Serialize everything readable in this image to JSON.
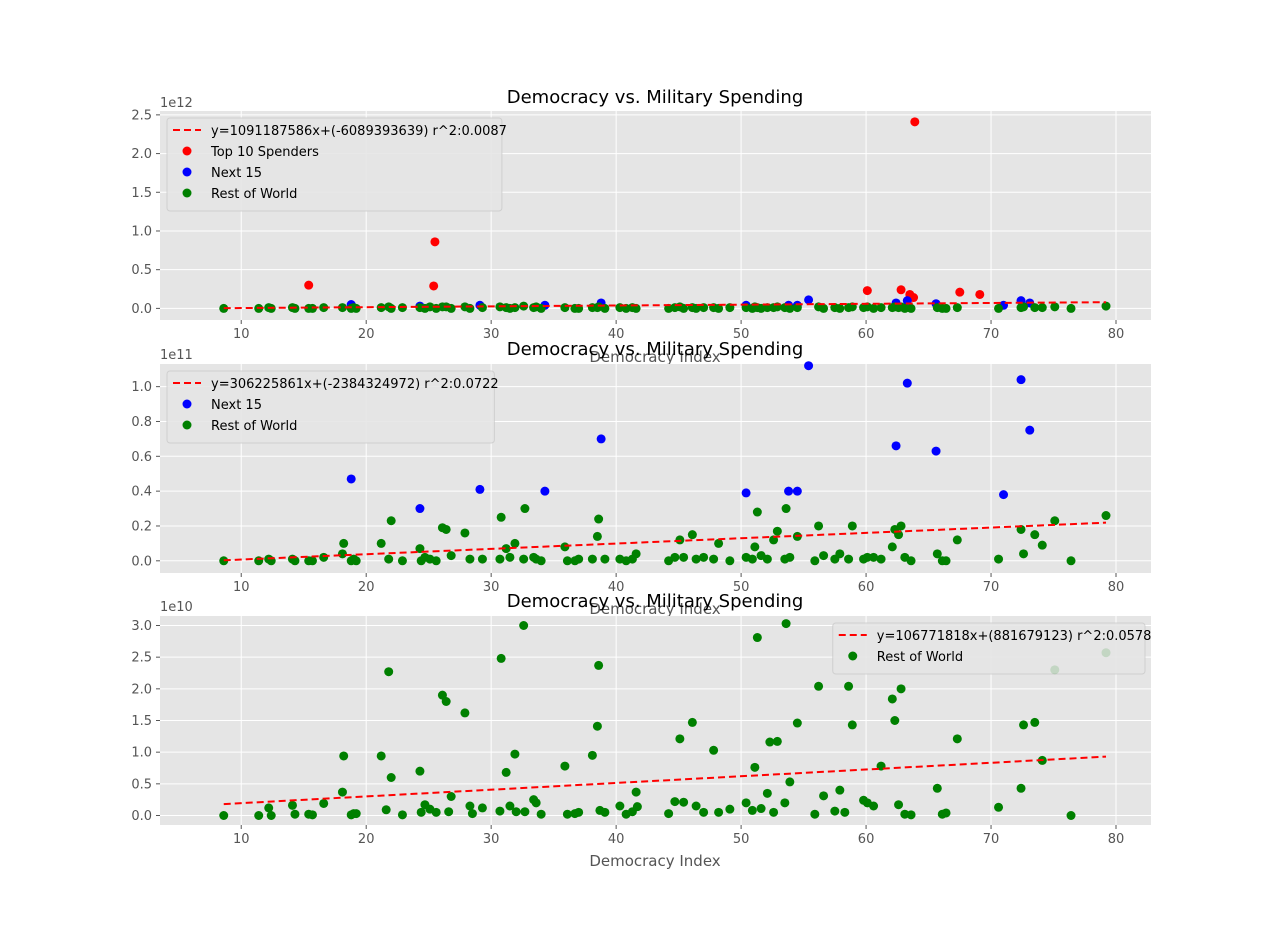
{
  "colors": {
    "panel_bg": "#e5e5e5",
    "grid": "#ffffff",
    "top10": "#ff0000",
    "next15": "#0000ff",
    "rest": "#008000",
    "fit": "#ff0000"
  },
  "chart_data": [
    {
      "type": "scatter",
      "title": "Democracy vs. Military Spending",
      "xlabel": "Democracy Index",
      "ylabel": "",
      "y_offset_label": "1e12",
      "xlim": [
        3.5,
        82.8
      ],
      "ylim": [
        -0.15,
        2.55
      ],
      "x_ticks": [
        10,
        20,
        30,
        40,
        50,
        60,
        70,
        80
      ],
      "x_tick_labels": [
        "10",
        "20",
        "30",
        "40",
        "50",
        "60",
        "70",
        "80"
      ],
      "y_ticks": [
        0.0,
        0.5,
        1.0,
        1.5,
        2.0,
        2.5
      ],
      "y_tick_labels": [
        "0.0",
        "0.5",
        "1.0",
        "1.5",
        "2.0",
        "2.5"
      ],
      "legend_position": "upper-left",
      "grid": true,
      "fit": {
        "label": "y=1091187586x+(-6089393639) r^2:0.0087",
        "x": [
          8.6,
          79.2
        ],
        "y": [
          0.003,
          0.08
        ]
      },
      "series": [
        {
          "name": "Top 10 Spenders",
          "color": "top10",
          "x": [
            15.4,
            25.4,
            25.5,
            60.1,
            62.8,
            63.5,
            63.8,
            63.9,
            67.5,
            69.1
          ],
          "y": [
            0.3,
            0.29,
            0.86,
            0.23,
            0.24,
            0.18,
            0.14,
            2.41,
            0.21,
            0.18
          ]
        },
        {
          "name": "Next 15",
          "color": "next15",
          "x": [
            18.8,
            24.3,
            29.1,
            34.3,
            38.8,
            50.4,
            53.8,
            54.5,
            55.4,
            62.4,
            63.3,
            65.6,
            71.0,
            72.4,
            73.1
          ],
          "y": [
            0.05,
            0.03,
            0.04,
            0.04,
            0.07,
            0.04,
            0.04,
            0.04,
            0.11,
            0.07,
            0.1,
            0.06,
            0.04,
            0.1,
            0.07
          ]
        },
        {
          "name": "Rest of World",
          "color": "rest",
          "x": [
            8.6,
            11.4,
            12.2,
            12.4,
            14.1,
            14.3,
            15.4,
            15.7,
            16.6,
            18.1,
            18.8,
            19.0,
            19.2,
            21.2,
            21.8,
            22.0,
            22.9,
            24.3,
            24.7,
            25.1,
            25.6,
            26.1,
            26.4,
            26.8,
            27.9,
            28.3,
            29.3,
            30.7,
            31.2,
            31.5,
            31.9,
            32.6,
            33.4,
            33.6,
            34.0,
            35.9,
            36.7,
            37.0,
            38.1,
            38.5,
            38.6,
            39.1,
            40.3,
            40.8,
            41.3,
            41.6,
            44.2,
            44.7,
            45.1,
            45.4,
            46.1,
            46.4,
            47.0,
            47.8,
            48.2,
            49.1,
            50.4,
            50.9,
            51.1,
            51.3,
            51.6,
            52.1,
            52.6,
            52.9,
            53.5,
            53.9,
            54.5,
            56.2,
            56.6,
            57.5,
            57.9,
            58.6,
            58.9,
            59.8,
            60.1,
            60.6,
            61.2,
            62.1,
            62.3,
            62.6,
            62.8,
            63.1,
            63.6,
            65.7,
            66.1,
            66.4,
            67.3,
            70.6,
            72.4,
            72.6,
            73.5,
            74.1,
            75.1,
            76.4,
            79.2
          ],
          "y": [
            0.0,
            0.0,
            0.01,
            0.0,
            0.01,
            0.0,
            0.0,
            0.0,
            0.01,
            0.01,
            0.0,
            0.01,
            0.0,
            0.01,
            0.02,
            0.0,
            0.01,
            0.01,
            0.0,
            0.02,
            0.0,
            0.02,
            0.02,
            0.0,
            0.02,
            0.0,
            0.01,
            0.02,
            0.01,
            0.0,
            0.01,
            0.03,
            0.01,
            0.02,
            0.0,
            0.01,
            0.0,
            0.0,
            0.01,
            0.01,
            0.02,
            0.0,
            0.01,
            0.0,
            0.01,
            0.0,
            0.0,
            0.01,
            0.02,
            0.0,
            0.01,
            0.0,
            0.01,
            0.01,
            0.0,
            0.01,
            0.01,
            0.0,
            0.02,
            0.01,
            0.0,
            0.01,
            0.01,
            0.02,
            0.01,
            0.0,
            0.01,
            0.02,
            0.0,
            0.01,
            0.0,
            0.01,
            0.02,
            0.01,
            0.02,
            0.0,
            0.01,
            0.01,
            0.02,
            0.01,
            0.02,
            0.0,
            0.0,
            0.01,
            0.0,
            0.0,
            0.01,
            0.0,
            0.01,
            0.02,
            0.01,
            0.01,
            0.02,
            0.0,
            0.03
          ]
        }
      ]
    },
    {
      "type": "scatter",
      "title": "Democracy vs. Military Spending",
      "xlabel": "Democracy Index",
      "ylabel": "",
      "y_offset_label": "1e11",
      "xlim": [
        3.5,
        82.8
      ],
      "ylim": [
        -0.07,
        1.13
      ],
      "x_ticks": [
        10,
        20,
        30,
        40,
        50,
        60,
        70,
        80
      ],
      "x_tick_labels": [
        "10",
        "20",
        "30",
        "40",
        "50",
        "60",
        "70",
        "80"
      ],
      "y_ticks": [
        0.0,
        0.2,
        0.4,
        0.6,
        0.8,
        1.0
      ],
      "y_tick_labels": [
        "0.0",
        "0.2",
        "0.4",
        "0.6",
        "0.8",
        "1.0"
      ],
      "legend_position": "upper-left",
      "grid": true,
      "fit": {
        "label": "y=306225861x+(-2384324972) r^2:0.0722",
        "x": [
          8.6,
          79.2
        ],
        "y": [
          0.003,
          0.219
        ]
      },
      "series": [
        {
          "name": "Next 15",
          "color": "next15",
          "x": [
            18.8,
            24.3,
            29.1,
            34.3,
            38.8,
            50.4,
            53.8,
            54.5,
            55.4,
            62.4,
            63.3,
            65.6,
            71.0,
            72.4,
            73.1
          ],
          "y": [
            0.47,
            0.3,
            0.41,
            0.4,
            0.7,
            0.39,
            0.4,
            0.4,
            1.12,
            0.66,
            1.02,
            0.63,
            0.38,
            1.04,
            0.75
          ]
        },
        {
          "name": "Rest of World",
          "color": "rest",
          "x": [
            8.6,
            11.4,
            12.2,
            12.4,
            14.1,
            14.3,
            15.4,
            15.7,
            16.6,
            18.1,
            18.2,
            18.8,
            19.0,
            19.2,
            21.2,
            21.8,
            22.0,
            22.9,
            24.3,
            24.4,
            24.7,
            25.1,
            25.6,
            26.1,
            26.4,
            26.8,
            27.9,
            28.3,
            29.3,
            30.7,
            30.8,
            31.2,
            31.5,
            31.9,
            32.6,
            32.7,
            33.4,
            33.6,
            34.0,
            35.9,
            36.1,
            36.7,
            37.0,
            38.1,
            38.5,
            38.6,
            39.1,
            40.3,
            40.8,
            41.3,
            41.6,
            44.2,
            44.7,
            45.1,
            45.4,
            46.1,
            46.4,
            47.0,
            47.8,
            48.2,
            49.1,
            50.4,
            50.9,
            51.1,
            51.3,
            51.6,
            52.1,
            52.6,
            52.9,
            53.5,
            53.6,
            53.9,
            54.5,
            55.9,
            56.2,
            56.6,
            57.5,
            57.9,
            58.6,
            58.9,
            59.8,
            60.1,
            60.6,
            61.2,
            62.1,
            62.3,
            62.6,
            62.8,
            63.1,
            63.6,
            65.7,
            66.1,
            66.4,
            67.3,
            70.6,
            72.4,
            72.6,
            73.5,
            74.1,
            75.1,
            76.4,
            79.2
          ],
          "y": [
            0.0,
            0.0,
            0.01,
            0.0,
            0.01,
            0.0,
            0.0,
            0.0,
            0.02,
            0.04,
            0.1,
            0.0,
            0.01,
            0.0,
            0.1,
            0.01,
            0.23,
            0.0,
            0.07,
            0.0,
            0.02,
            0.01,
            0.0,
            0.19,
            0.18,
            0.03,
            0.16,
            0.01,
            0.01,
            0.01,
            0.25,
            0.07,
            0.02,
            0.1,
            0.01,
            0.3,
            0.02,
            0.01,
            0.0,
            0.08,
            0.0,
            0.0,
            0.01,
            0.01,
            0.14,
            0.24,
            0.01,
            0.01,
            0.0,
            0.01,
            0.04,
            0.0,
            0.02,
            0.12,
            0.02,
            0.15,
            0.01,
            0.02,
            0.01,
            0.1,
            0.0,
            0.02,
            0.01,
            0.08,
            0.28,
            0.03,
            0.01,
            0.12,
            0.17,
            0.01,
            0.3,
            0.02,
            0.14,
            0.0,
            0.2,
            0.03,
            0.01,
            0.04,
            0.01,
            0.2,
            0.01,
            0.02,
            0.02,
            0.01,
            0.08,
            0.18,
            0.15,
            0.2,
            0.02,
            0.0,
            0.04,
            0.0,
            0.0,
            0.12,
            0.01,
            0.18,
            0.04,
            0.15,
            0.09,
            0.23,
            0.0,
            0.26
          ]
        }
      ]
    },
    {
      "type": "scatter",
      "title": "Democracy vs. Military Spending",
      "xlabel": "Democracy Index",
      "ylabel": "",
      "y_offset_label": "1e10",
      "xlim": [
        3.5,
        82.8
      ],
      "ylim": [
        -0.15,
        3.15
      ],
      "x_ticks": [
        10,
        20,
        30,
        40,
        50,
        60,
        70,
        80
      ],
      "x_tick_labels": [
        "10",
        "20",
        "30",
        "40",
        "50",
        "60",
        "70",
        "80"
      ],
      "y_ticks": [
        0.0,
        0.5,
        1.0,
        1.5,
        2.0,
        2.5,
        3.0
      ],
      "y_tick_labels": [
        "0.0",
        "0.5",
        "1.0",
        "1.5",
        "2.0",
        "2.5",
        "3.0"
      ],
      "legend_position": "upper-right",
      "grid": true,
      "fit": {
        "label": "y=106771818x+(881679123) r^2:0.0578",
        "x": [
          8.6,
          79.2
        ],
        "y": [
          0.18,
          0.93
        ]
      },
      "series": [
        {
          "name": "Rest of World",
          "color": "rest",
          "x": [
            8.6,
            11.4,
            12.2,
            12.4,
            14.1,
            14.3,
            15.4,
            15.7,
            16.6,
            18.1,
            18.2,
            18.8,
            19.0,
            19.2,
            21.2,
            21.6,
            21.8,
            22.0,
            22.9,
            24.3,
            24.4,
            24.7,
            25.1,
            25.6,
            26.1,
            26.4,
            26.6,
            26.8,
            27.9,
            28.3,
            28.5,
            29.3,
            30.7,
            30.8,
            31.2,
            31.5,
            31.9,
            32.0,
            32.6,
            32.7,
            33.4,
            33.6,
            34.0,
            35.9,
            36.1,
            36.7,
            37.0,
            38.1,
            38.5,
            38.6,
            38.7,
            39.1,
            40.3,
            40.8,
            41.3,
            41.6,
            41.7,
            44.2,
            44.7,
            45.1,
            45.4,
            46.1,
            46.4,
            47.0,
            47.8,
            48.2,
            49.1,
            50.4,
            50.9,
            51.1,
            51.3,
            51.6,
            52.1,
            52.3,
            52.6,
            52.9,
            53.5,
            53.6,
            53.9,
            54.5,
            55.9,
            56.2,
            56.6,
            57.5,
            57.9,
            58.3,
            58.6,
            58.9,
            59.8,
            60.1,
            60.6,
            61.2,
            62.1,
            62.3,
            62.6,
            62.8,
            63.1,
            63.6,
            65.7,
            66.1,
            66.4,
            67.3,
            70.6,
            72.4,
            72.6,
            73.5,
            74.1,
            75.1,
            76.4,
            79.2
          ],
          "y": [
            0.0,
            0.0,
            0.12,
            0.0,
            0.16,
            0.02,
            0.02,
            0.01,
            0.19,
            0.37,
            0.94,
            0.01,
            0.03,
            0.03,
            0.94,
            0.09,
            2.27,
            0.6,
            0.01,
            0.7,
            0.05,
            0.17,
            0.1,
            0.05,
            1.9,
            1.8,
            0.06,
            0.3,
            1.62,
            0.15,
            0.03,
            0.12,
            0.07,
            2.48,
            0.68,
            0.15,
            0.97,
            0.06,
            3.0,
            0.06,
            0.25,
            0.2,
            0.02,
            0.78,
            0.02,
            0.03,
            0.05,
            0.95,
            1.41,
            2.37,
            0.08,
            0.05,
            0.15,
            0.02,
            0.06,
            0.37,
            0.14,
            0.03,
            0.22,
            1.21,
            0.21,
            1.47,
            0.15,
            0.05,
            1.03,
            0.05,
            0.1,
            0.2,
            0.08,
            0.76,
            2.81,
            0.11,
            0.35,
            1.16,
            0.05,
            1.17,
            0.2,
            3.03,
            0.53,
            1.46,
            0.02,
            2.04,
            0.31,
            0.07,
            0.4,
            0.05,
            2.04,
            1.43,
            0.24,
            0.2,
            0.15,
            0.78,
            1.84,
            1.5,
            0.17,
            2.0,
            0.02,
            0.01,
            0.43,
            0.02,
            0.04,
            1.21,
            0.13,
            0.43,
            1.43,
            1.47,
            0.87,
            2.3,
            0.0,
            2.57
          ]
        }
      ]
    }
  ]
}
